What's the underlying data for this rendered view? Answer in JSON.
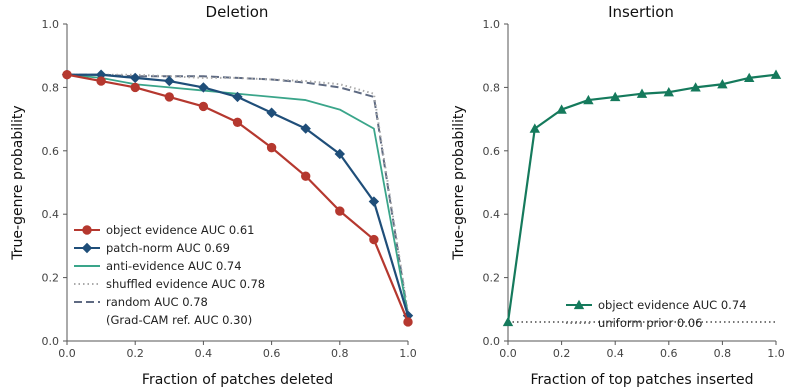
{
  "chart_data": [
    {
      "type": "line",
      "title": "Deletion",
      "xlabel": "Fraction of patches deleted",
      "ylabel": "True-genre probability",
      "xlim": [
        0,
        1
      ],
      "ylim": [
        0,
        1
      ],
      "xticks": [
        "0.0",
        "0.2",
        "0.4",
        "0.6",
        "0.8",
        "1.0"
      ],
      "yticks": [
        "0.0",
        "0.2",
        "0.4",
        "0.6",
        "0.8",
        "1.0"
      ],
      "grid": false,
      "legend_placement": "lower-left",
      "x": [
        0,
        0.1,
        0.2,
        0.3,
        0.4,
        0.5,
        0.6,
        0.7,
        0.8,
        0.9,
        1.0
      ],
      "series": [
        {
          "name": "object evidence  AUC 0.61",
          "color": "#b5382f",
          "style": "solid",
          "marker": "circle",
          "values": [
            0.84,
            0.82,
            0.8,
            0.77,
            0.74,
            0.69,
            0.61,
            0.52,
            0.41,
            0.32,
            0.06
          ]
        },
        {
          "name": "patch-norm  AUC 0.69",
          "color": "#1f4e79",
          "style": "solid",
          "marker": "diamond",
          "values": [
            0.84,
            0.84,
            0.83,
            0.82,
            0.8,
            0.77,
            0.72,
            0.67,
            0.59,
            0.44,
            0.08
          ]
        },
        {
          "name": "anti-evidence  AUC 0.74",
          "color": "#3aa58a",
          "style": "solid",
          "marker": "none",
          "values": [
            0.84,
            0.83,
            0.81,
            0.8,
            0.79,
            0.78,
            0.77,
            0.76,
            0.73,
            0.67,
            0.08
          ]
        },
        {
          "name": "shuffled evidence  AUC 0.78",
          "color": "#aaaaaa",
          "style": "dotted",
          "marker": "none",
          "values": [
            0.84,
            0.84,
            0.84,
            0.835,
            0.83,
            0.83,
            0.825,
            0.82,
            0.81,
            0.78,
            0.09
          ]
        },
        {
          "name": "random  AUC 0.78",
          "color": "#5e6a82",
          "style": "dashed",
          "marker": "none",
          "values": [
            0.84,
            0.84,
            0.835,
            0.835,
            0.835,
            0.83,
            0.825,
            0.815,
            0.8,
            0.77,
            0.08
          ]
        }
      ],
      "legend_note": "(Grad-CAM ref. AUC 0.30)"
    },
    {
      "type": "line",
      "title": "Insertion",
      "xlabel": "Fraction of top patches inserted",
      "ylabel": "True-genre probability",
      "xlim": [
        0,
        1
      ],
      "ylim": [
        0,
        1
      ],
      "xticks": [
        "0.0",
        "0.2",
        "0.4",
        "0.6",
        "0.8",
        "1.0"
      ],
      "yticks": [
        "0.0",
        "0.2",
        "0.4",
        "0.6",
        "0.8",
        "1.0"
      ],
      "grid": false,
      "legend_placement": "lower-right",
      "x": [
        0,
        0.1,
        0.2,
        0.3,
        0.4,
        0.5,
        0.6,
        0.7,
        0.8,
        0.9,
        1.0
      ],
      "series": [
        {
          "name": "object evidence  AUC 0.74",
          "color": "#157a5c",
          "style": "solid",
          "marker": "triangle",
          "values": [
            0.06,
            0.67,
            0.73,
            0.76,
            0.77,
            0.78,
            0.785,
            0.8,
            0.81,
            0.83,
            0.84
          ]
        },
        {
          "name": "uniform prior 0.06",
          "color": "#777777",
          "style": "dotted",
          "marker": "none",
          "values": [
            0.06,
            0.06,
            0.06,
            0.06,
            0.06,
            0.06,
            0.06,
            0.06,
            0.06,
            0.06,
            0.06
          ]
        }
      ]
    }
  ]
}
